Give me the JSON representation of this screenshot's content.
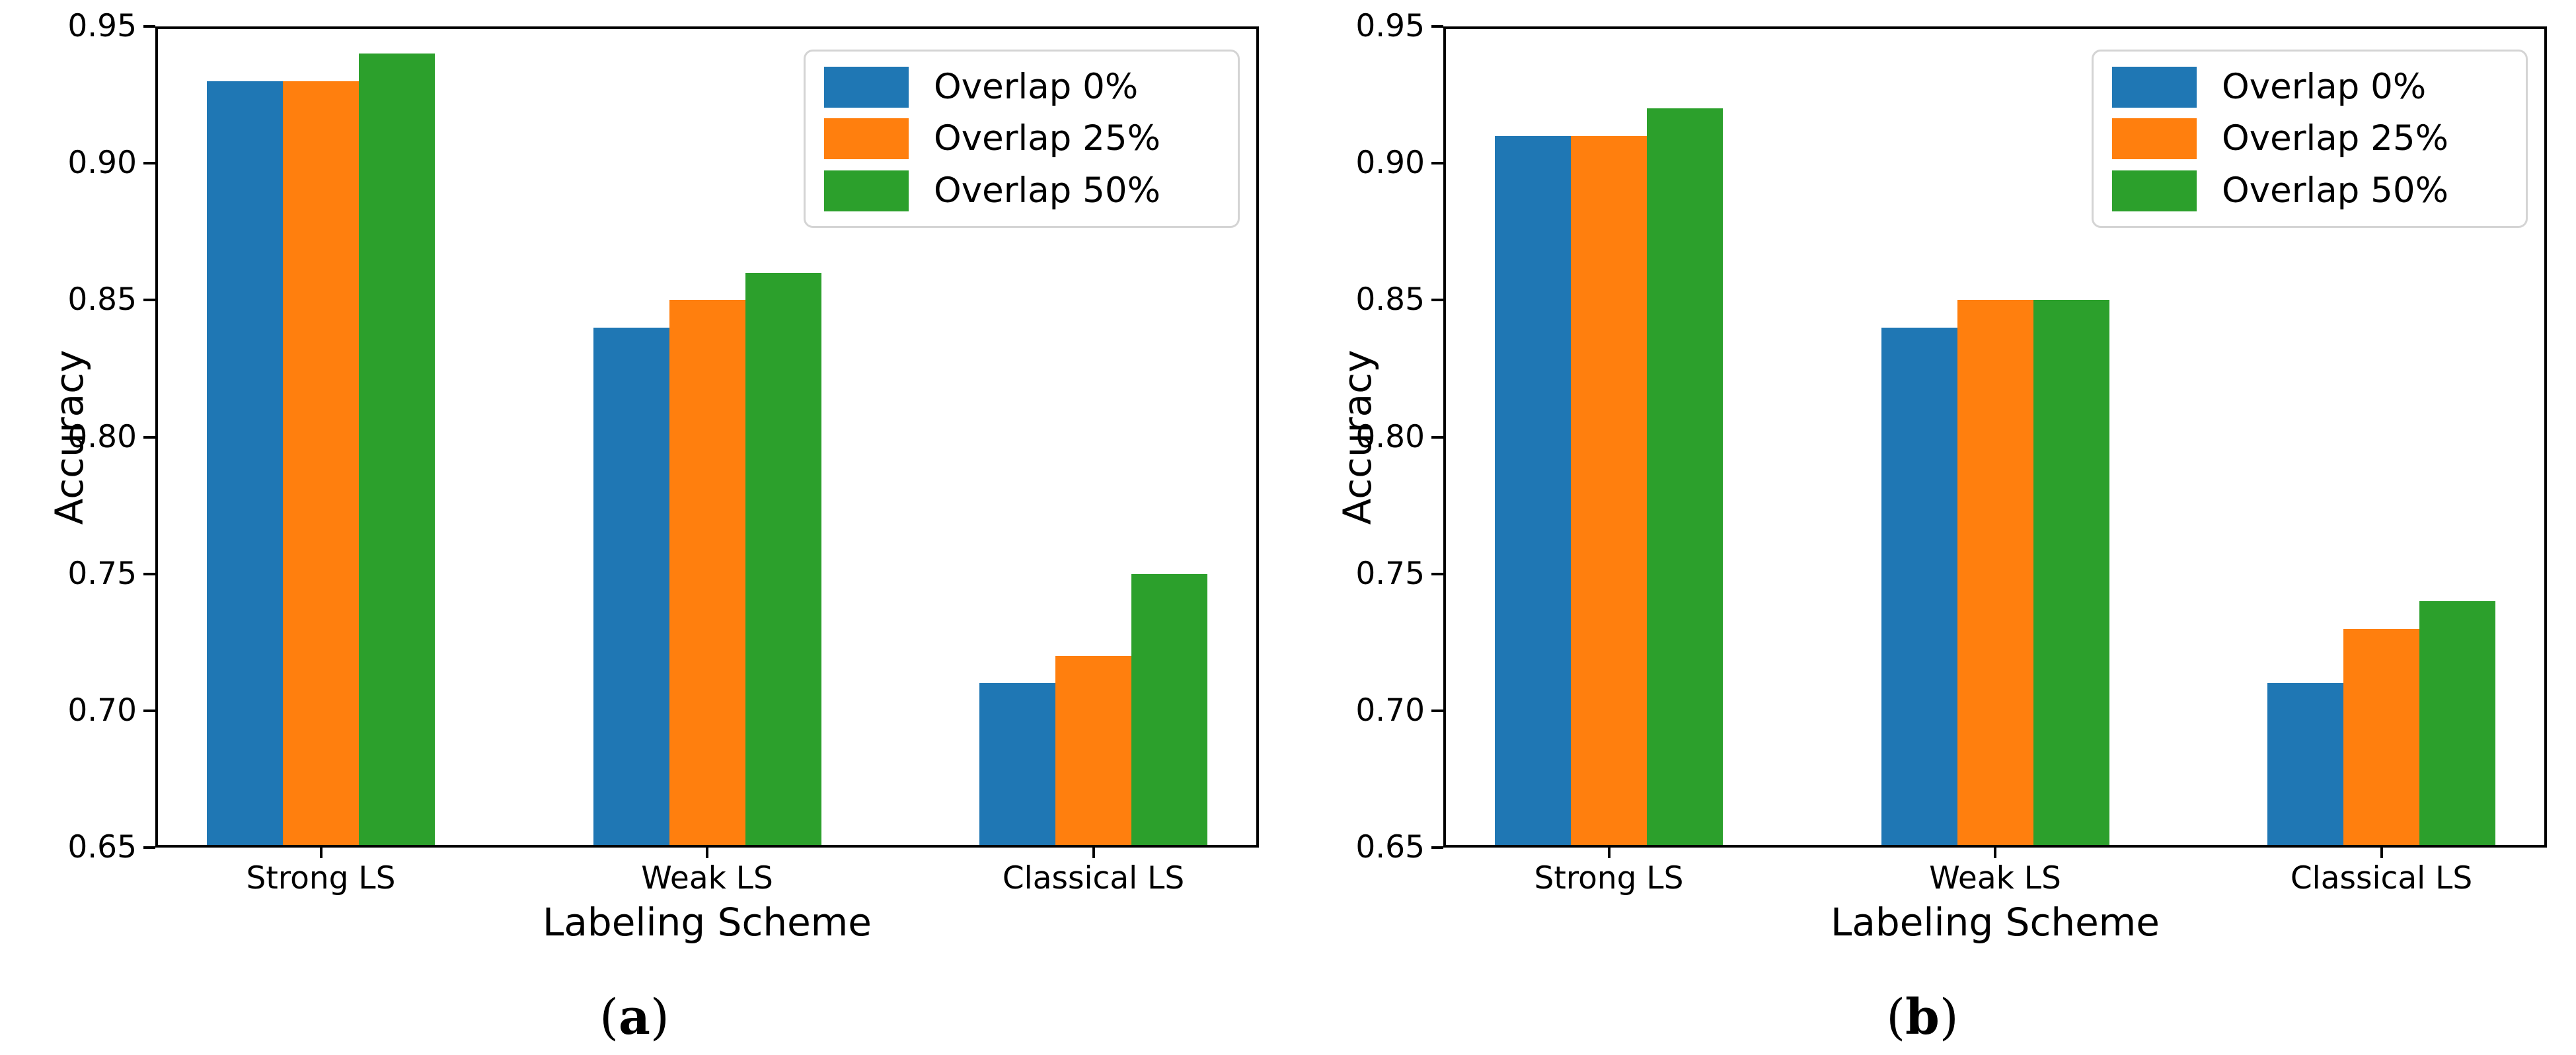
{
  "chart_data": [
    {
      "type": "bar",
      "panel_label": "(a)",
      "panel_letter": "a",
      "xlabel": "Labeling Scheme",
      "ylabel": "Accuracy",
      "categories": [
        "Strong LS",
        "Weak LS",
        "Classical LS"
      ],
      "series": [
        {
          "name": "Overlap 0%",
          "color": "#1f77b4",
          "values": [
            0.93,
            0.84,
            0.71
          ]
        },
        {
          "name": "Overlap 25%",
          "color": "#ff7f0e",
          "values": [
            0.93,
            0.85,
            0.72
          ]
        },
        {
          "name": "Overlap 50%",
          "color": "#2ca02c",
          "values": [
            0.94,
            0.86,
            0.75
          ]
        }
      ],
      "ylim": [
        0.65,
        0.95
      ],
      "ytick_labels": [
        "0.95",
        "0.90",
        "0.85",
        "0.80",
        "0.75",
        "0.70",
        "0.65"
      ],
      "legend": {
        "position": "top-right",
        "entries": [
          "Overlap 0%",
          "Overlap 25%",
          "Overlap 50%"
        ]
      },
      "grid": false
    },
    {
      "type": "bar",
      "panel_label": "(b)",
      "panel_letter": "b",
      "xlabel": "Labeling Scheme",
      "ylabel": "Accuracy",
      "categories": [
        "Strong LS",
        "Weak LS",
        "Classical LS"
      ],
      "series": [
        {
          "name": "Overlap 0%",
          "color": "#1f77b4",
          "values": [
            0.91,
            0.84,
            0.71
          ]
        },
        {
          "name": "Overlap 25%",
          "color": "#ff7f0e",
          "values": [
            0.91,
            0.85,
            0.73
          ]
        },
        {
          "name": "Overlap 50%",
          "color": "#2ca02c",
          "values": [
            0.92,
            0.85,
            0.74
          ]
        }
      ],
      "ylim": [
        0.65,
        0.95
      ],
      "ytick_labels": [
        "0.95",
        "0.90",
        "0.85",
        "0.80",
        "0.75",
        "0.70",
        "0.65"
      ],
      "legend": {
        "position": "top-right",
        "entries": [
          "Overlap 0%",
          "Overlap 25%",
          "Overlap 50%"
        ]
      },
      "grid": false
    }
  ]
}
